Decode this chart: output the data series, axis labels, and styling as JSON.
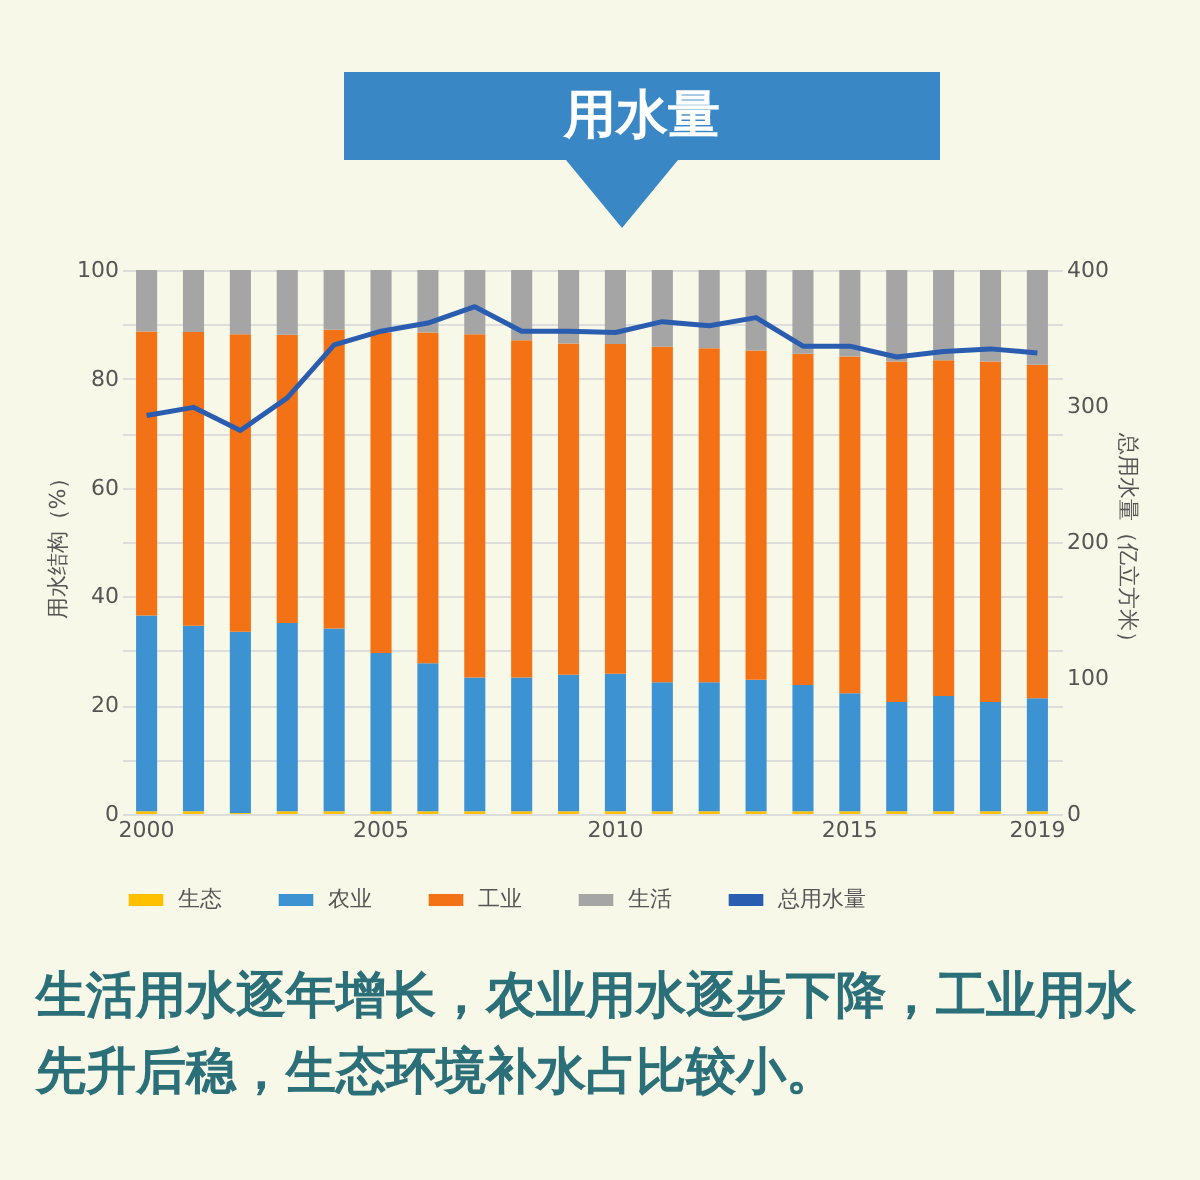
{
  "chart_data": {
    "type": "bar",
    "stacked": true,
    "title": "用水量",
    "categories": [
      "2000",
      null,
      null,
      null,
      null,
      "2005",
      null,
      null,
      null,
      null,
      "2010",
      null,
      null,
      null,
      null,
      "2015",
      null,
      null,
      null,
      "2019"
    ],
    "ylabel": "用水结构（%）",
    "y2label": "总用水量（亿立方米）",
    "ylim": [
      0,
      100
    ],
    "yticks": [
      0,
      {
        "value": 10,
        "label": null
      },
      20,
      {
        "value": 30,
        "label": null
      },
      40,
      {
        "value": 50,
        "label": null
      },
      60,
      {
        "value": 70,
        "label": null
      },
      80,
      {
        "value": 90,
        "label": null
      },
      100
    ],
    "y2lim": [
      0,
      400
    ],
    "y2ticks": [
      0,
      100,
      200,
      300,
      400
    ],
    "grid": "y",
    "legend": "bottom",
    "series": [
      {
        "name": "生态",
        "color": "#ffc000",
        "values": [
          0.5,
          0.5,
          0.2,
          0.5,
          0.5,
          0.5,
          0.5,
          0.5,
          0.5,
          0.5,
          0.5,
          0.5,
          0.5,
          0.5,
          0.5,
          0.5,
          0.5,
          0.5,
          0.5,
          0.5
        ]
      },
      {
        "name": "农业",
        "color": "#3d93d2",
        "values": [
          36,
          34.1,
          33.3,
          34.6,
          33.6,
          29.1,
          27.2,
          24.6,
          24.6,
          25.1,
          25.3,
          23.7,
          23.7,
          24.2,
          23.2,
          21.7,
          20.1,
          21.2,
          20.1,
          20.8
        ]
      },
      {
        "name": "工业",
        "color": "#f47216",
        "values": [
          52.2,
          54,
          54.7,
          53,
          54.9,
          58.9,
          60.8,
          63.1,
          62,
          60.9,
          60.6,
          61.7,
          61.4,
          60.5,
          60.9,
          61.9,
          62.6,
          61.7,
          62.6,
          61.3
        ]
      },
      {
        "name": "生活",
        "color": "#a5a5a5",
        "values": [
          11.3,
          11.4,
          11.8,
          11.9,
          11,
          11.5,
          11.5,
          11.8,
          12.9,
          13.5,
          13.6,
          14.1,
          14.4,
          14.8,
          15.4,
          15.9,
          16.8,
          16.6,
          16.8,
          17.4
        ]
      },
      {
        "name": "总用水量",
        "type": "line",
        "axis": "y2",
        "color": "#2a5db0",
        "values": [
          293,
          299,
          282,
          306,
          345,
          355,
          361,
          373,
          355,
          355,
          354,
          362,
          359,
          365,
          344,
          344,
          336,
          340,
          342,
          339
        ]
      }
    ],
    "annotations": [
      "生活用水逐年增长，农业用水逐步下降，工业用水先升后稳，生态环境补水占比较小。"
    ]
  }
}
